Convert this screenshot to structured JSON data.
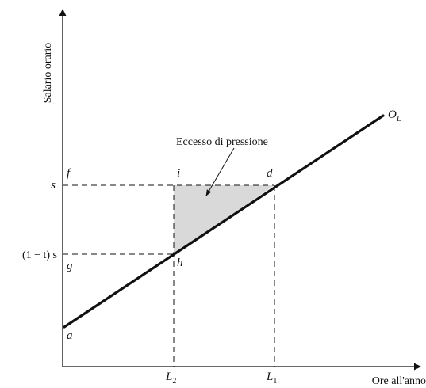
{
  "diagram": {
    "y_axis_label": "Salario orario",
    "x_axis_label": "Ore all'anno",
    "supply_curve_label": "O",
    "supply_curve_subscript": "L",
    "annotation": "Eccesso di pressione",
    "y_ticks": {
      "wage_label": "s",
      "net_wage_label": "(1 − t) s"
    },
    "x_ticks": {
      "L2": {
        "base": "L",
        "sub": "2"
      },
      "L1": {
        "base": "L",
        "sub": "1"
      }
    },
    "points": {
      "a": "a",
      "f": "f",
      "g": "g",
      "i": "i",
      "d": "d",
      "h": "h"
    },
    "colors": {
      "shaded_area": "#d9d9d9",
      "lines": "#111111"
    }
  }
}
